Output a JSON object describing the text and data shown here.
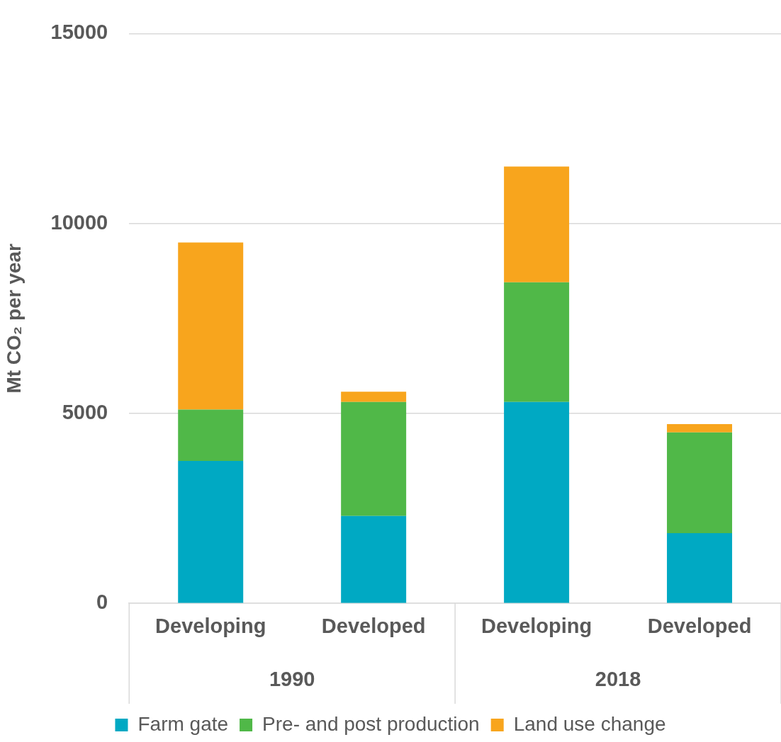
{
  "chart_data": {
    "type": "bar",
    "stacked": true,
    "ylabel": "Mt CO₂ per year",
    "categories": [
      "Developing",
      "Developed",
      "Developing",
      "Developed"
    ],
    "annotations": [
      "1990",
      "2018"
    ],
    "series": [
      {
        "name": "Farm gate",
        "color": "#00a9c3",
        "values": [
          3750,
          2300,
          5300,
          1850
        ]
      },
      {
        "name": "Pre- and post production",
        "color": "#50b848",
        "values": [
          1350,
          3000,
          3150,
          2650
        ]
      },
      {
        "name": "Land use change",
        "color": "#f8a51d",
        "values": [
          4400,
          270,
          3050,
          220
        ]
      }
    ],
    "ylim": [
      0,
      15000
    ],
    "yticks": [
      0,
      5000,
      10000,
      15000
    ],
    "grid": "y",
    "legend": "bottom"
  }
}
